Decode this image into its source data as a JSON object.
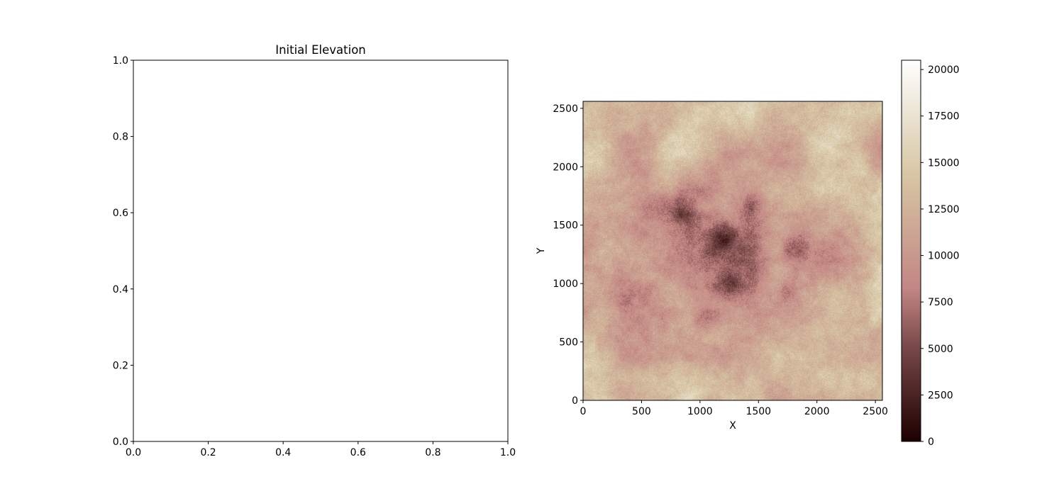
{
  "chart_data": [
    {
      "type": "line",
      "title": "Initial Elevation",
      "xlabel": "",
      "ylabel": "",
      "xlim": [
        0.0,
        1.0
      ],
      "ylim": [
        0.0,
        1.0
      ],
      "x_ticks": [
        "0.0",
        "0.2",
        "0.4",
        "0.6",
        "0.8",
        "1.0"
      ],
      "y_ticks": [
        "0.0",
        "0.2",
        "0.4",
        "0.6",
        "0.8",
        "1.0"
      ],
      "series": []
    },
    {
      "type": "heatmap",
      "title": "",
      "xlabel": "X",
      "ylabel": "Y",
      "xlim": [
        0,
        2560
      ],
      "ylim": [
        0,
        2560
      ],
      "x_ticks": [
        "0",
        "500",
        "1000",
        "1500",
        "2000",
        "2500"
      ],
      "y_ticks": [
        "0",
        "500",
        "1000",
        "1500",
        "2000",
        "2500"
      ],
      "colormap": "pink",
      "value_range": [
        0,
        20500
      ],
      "colorbar_ticks": [
        "0",
        "2500",
        "5000",
        "7500",
        "10000",
        "12500",
        "15000",
        "17500",
        "20000"
      ],
      "colors": {
        "low": "#1e0000",
        "mid_low": "#7a4a4a",
        "mid": "#c38684",
        "mid_high": "#d7c7a4",
        "high": "#ffffff"
      },
      "features": [
        {
          "x": 850,
          "y": 1600,
          "depth": 0.55
        },
        {
          "x": 1200,
          "y": 1400,
          "depth": 0.6
        },
        {
          "x": 1250,
          "y": 1000,
          "depth": 0.5
        },
        {
          "x": 1750,
          "y": 900,
          "depth": 0.45
        },
        {
          "x": 1420,
          "y": 1680,
          "depth": 0.45
        },
        {
          "x": 1050,
          "y": 700,
          "depth": 0.4
        },
        {
          "x": 1800,
          "y": 1300,
          "depth": 0.45
        }
      ]
    }
  ]
}
